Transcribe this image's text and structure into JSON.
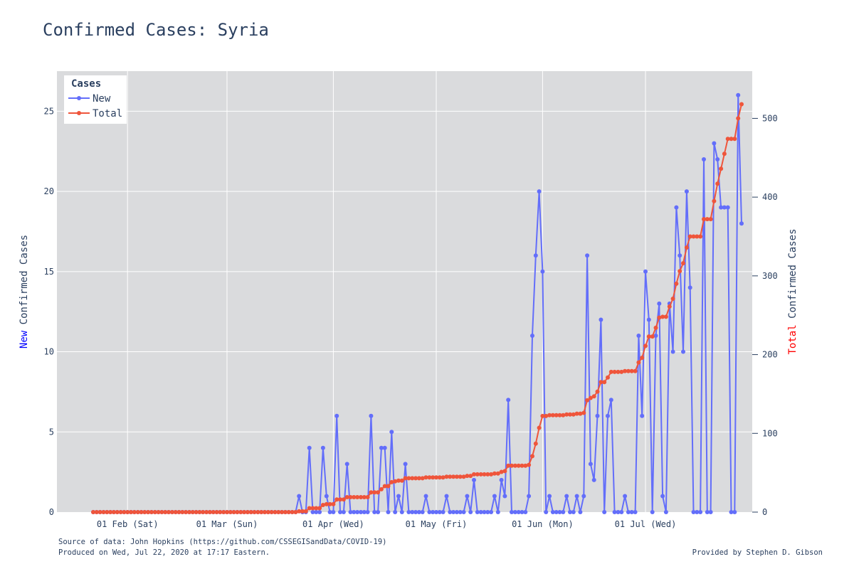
{
  "page": {
    "title": "Confirmed Cases: Syria",
    "source": "Source of data: John Hopkins (https://github.com/CSSEGISandData/COVID-19)",
    "produced": "Produced on Wed, Jul 22, 2020 at 17:17 Eastern.",
    "provided": "Provided by Stephen D. Gibson"
  },
  "colors": {
    "plot_bg": "#dadbdd",
    "grid": "#ffffff",
    "new": "#636efa",
    "total": "#ef553b",
    "text": "#2a3f5f",
    "ylabel_new_word": "#0000ff",
    "ylabel_total_word": "#ff0000"
  },
  "chart_data": {
    "type": "line",
    "title": "Confirmed Cases: Syria",
    "x_start": "2020-01-22",
    "x_ticks": [
      "01 Feb (Sat)",
      "01 Mar (Sun)",
      "01 Apr (Wed)",
      "01 May (Fri)",
      "01 Jun (Mon)",
      "01 Jul (Wed)"
    ],
    "x_tick_dates": [
      "2020-02-01",
      "2020-03-01",
      "2020-04-01",
      "2020-05-01",
      "2020-06-01",
      "2020-07-01"
    ],
    "y_left": {
      "label_prefix": "New",
      "label_rest": " Confirmed Cases",
      "range": [
        0,
        27.5
      ],
      "ticks": [
        0,
        5,
        10,
        15,
        20,
        25
      ]
    },
    "y_right": {
      "label_prefix": "Total",
      "label_rest": " Confirmed Cases",
      "range": [
        0,
        560
      ],
      "ticks": [
        0,
        100,
        200,
        300,
        400,
        500
      ]
    },
    "legend": {
      "title": "Cases",
      "position": "top-left",
      "items": [
        "New",
        "Total"
      ]
    },
    "grid": true,
    "series": [
      {
        "name": "New",
        "axis": "left",
        "values": [
          0,
          0,
          0,
          0,
          0,
          0,
          0,
          0,
          0,
          0,
          0,
          0,
          0,
          0,
          0,
          0,
          0,
          0,
          0,
          0,
          0,
          0,
          0,
          0,
          0,
          0,
          0,
          0,
          0,
          0,
          0,
          0,
          0,
          0,
          0,
          0,
          0,
          0,
          0,
          0,
          0,
          0,
          0,
          0,
          0,
          0,
          0,
          0,
          0,
          0,
          0,
          0,
          0,
          0,
          0,
          0,
          0,
          0,
          0,
          0,
          1,
          0,
          0,
          4,
          0,
          0,
          0,
          4,
          1,
          0,
          0,
          6,
          0,
          0,
          3,
          0,
          0,
          0,
          0,
          0,
          0,
          6,
          0,
          0,
          4,
          4,
          0,
          5,
          0,
          1,
          0,
          3,
          0,
          0,
          0,
          0,
          0,
          1,
          0,
          0,
          0,
          0,
          0,
          1,
          0,
          0,
          0,
          0,
          0,
          1,
          0,
          2,
          0,
          0,
          0,
          0,
          0,
          1,
          0,
          2,
          1,
          7,
          0,
          0,
          0,
          0,
          0,
          1,
          11,
          16,
          20,
          15,
          0,
          1,
          0,
          0,
          0,
          0,
          1,
          0,
          0,
          1,
          0,
          1,
          16,
          3,
          2,
          6,
          12,
          0,
          6,
          7,
          0,
          0,
          0,
          1,
          0,
          0,
          0,
          11,
          6,
          15,
          12,
          0,
          11,
          13,
          1,
          0,
          13,
          10,
          19,
          16,
          10,
          20,
          14,
          0,
          0,
          0,
          22,
          0,
          0,
          23,
          22,
          19,
          19,
          19,
          0,
          0,
          26,
          18
        ]
      },
      {
        "name": "Total",
        "axis": "right",
        "values": [
          0,
          0,
          0,
          0,
          0,
          0,
          0,
          0,
          0,
          0,
          0,
          0,
          0,
          0,
          0,
          0,
          0,
          0,
          0,
          0,
          0,
          0,
          0,
          0,
          0,
          0,
          0,
          0,
          0,
          0,
          0,
          0,
          0,
          0,
          0,
          0,
          0,
          0,
          0,
          0,
          0,
          0,
          0,
          0,
          0,
          0,
          0,
          0,
          0,
          0,
          0,
          0,
          0,
          0,
          0,
          0,
          0,
          0,
          0,
          0,
          1,
          1,
          1,
          5,
          5,
          5,
          5,
          9,
          10,
          10,
          10,
          16,
          16,
          16,
          19,
          19,
          19,
          19,
          19,
          19,
          19,
          25,
          25,
          25,
          29,
          33,
          33,
          38,
          39,
          40,
          40,
          43,
          43,
          43,
          43,
          43,
          43,
          44,
          44,
          44,
          44,
          44,
          44,
          45,
          45,
          45,
          45,
          45,
          45,
          46,
          46,
          48,
          48,
          48,
          48,
          48,
          48,
          49,
          49,
          51,
          52,
          59,
          59,
          59,
          59,
          59,
          59,
          60,
          71,
          87,
          107,
          122,
          122,
          123,
          123,
          123,
          123,
          123,
          124,
          124,
          124,
          125,
          125,
          126,
          142,
          145,
          147,
          153,
          165,
          165,
          171,
          178,
          178,
          178,
          178,
          179,
          179,
          179,
          179,
          190,
          196,
          211,
          223,
          223,
          234,
          247,
          248,
          248,
          261,
          271,
          290,
          306,
          316,
          336,
          350,
          350,
          350,
          350,
          372,
          372,
          372,
          395,
          417,
          436,
          455,
          474,
          474,
          474,
          500,
          518
        ]
      }
    ]
  }
}
